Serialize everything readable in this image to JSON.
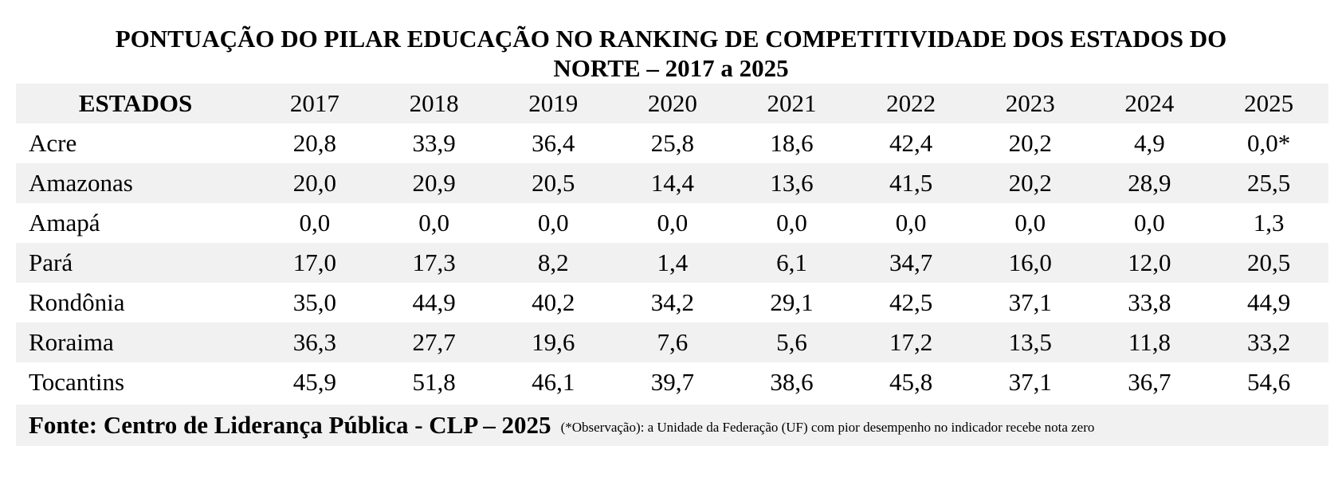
{
  "title": {
    "line1": "PONTUAÇÃO DO PILAR EDUCAÇÃO NO RANKING DE COMPETITIVIDADE DOS ESTADOS DO",
    "line2": "NORTE – 2017 a 2025"
  },
  "table": {
    "header": {
      "state_label": "ESTADOS",
      "years": [
        "2017",
        "2018",
        "2019",
        "2020",
        "2021",
        "2022",
        "2023",
        "2024",
        "2025"
      ]
    },
    "rows": [
      {
        "state": "Acre",
        "values": [
          "20,8",
          "33,9",
          "36,4",
          "25,8",
          "18,6",
          "42,4",
          "20,2",
          "4,9",
          "0,0*"
        ]
      },
      {
        "state": "Amazonas",
        "values": [
          "20,0",
          "20,9",
          "20,5",
          "14,4",
          "13,6",
          "41,5",
          "20,2",
          "28,9",
          "25,5"
        ]
      },
      {
        "state": "Amapá",
        "values": [
          "0,0",
          "0,0",
          "0,0",
          "0,0",
          "0,0",
          "0,0",
          "0,0",
          "0,0",
          "1,3"
        ]
      },
      {
        "state": "Pará",
        "values": [
          "17,0",
          "17,3",
          "8,2",
          "1,4",
          "6,1",
          "34,7",
          "16,0",
          "12,0",
          "20,5"
        ]
      },
      {
        "state": "Rondônia",
        "values": [
          "35,0",
          "44,9",
          "40,2",
          "34,2",
          "29,1",
          "42,5",
          "37,1",
          "33,8",
          "44,9"
        ]
      },
      {
        "state": "Roraima",
        "values": [
          "36,3",
          "27,7",
          "19,6",
          "7,6",
          "5,6",
          "17,2",
          "13,5",
          "11,8",
          "33,2"
        ]
      },
      {
        "state": "Tocantins",
        "values": [
          "45,9",
          "51,8",
          "46,1",
          "39,7",
          "38,6",
          "45,8",
          "37,1",
          "36,7",
          "54,6"
        ]
      }
    ]
  },
  "footer": {
    "source": "Fonte: Centro de Liderança Pública - CLP – 2025",
    "note": "(*Observação): a Unidade da Federação (UF) com pior desempenho no indicador recebe nota zero"
  },
  "colors": {
    "shade": "#f1f1f1",
    "text": "#000000",
    "background": "#ffffff"
  }
}
